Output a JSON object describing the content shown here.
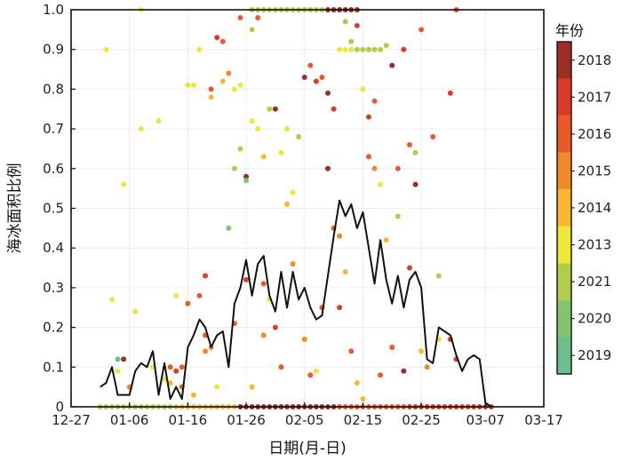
{
  "chart_data": {
    "type": "scatter",
    "xlabel": "日期(月-日)",
    "ylabel": "海冰面积比例",
    "x_ticks": [
      "12-27",
      "01-06",
      "01-16",
      "01-26",
      "02-05",
      "02-15",
      "02-25",
      "03-07",
      "03-17"
    ],
    "xlim": [
      "12-27",
      "03-17"
    ],
    "ylim": [
      0,
      1.0
    ],
    "y_ticks": [
      "0",
      "0.1",
      "0.2",
      "0.3",
      "0.4",
      "0.5",
      "0.6",
      "0.7",
      "0.8",
      "0.9",
      "1.0"
    ],
    "grid": true,
    "colorbar": {
      "title": "年份",
      "position": "right",
      "labels": [
        "2019",
        "2020",
        "2021",
        "2013",
        "2014",
        "2015",
        "2016",
        "2017",
        "2018"
      ],
      "colors": [
        "#6fbf8e",
        "#84c46e",
        "#afcd4a",
        "#ede63a",
        "#f7b733",
        "#ef8a2b",
        "#e9592a",
        "#dc3b2a",
        "#9c2d24"
      ]
    },
    "series": [
      {
        "type": "line",
        "color": "#111111",
        "points": [
          [
            "01-01",
            0.05
          ],
          [
            "01-02",
            0.06
          ],
          [
            "01-03",
            0.1
          ],
          [
            "01-04",
            0.03
          ],
          [
            "01-05",
            0.03
          ],
          [
            "01-06",
            0.03
          ],
          [
            "01-07",
            0.09
          ],
          [
            "01-08",
            0.11
          ],
          [
            "01-09",
            0.1
          ],
          [
            "01-10",
            0.14
          ],
          [
            "01-11",
            0.03
          ],
          [
            "01-12",
            0.11
          ],
          [
            "01-13",
            0.02
          ],
          [
            "01-14",
            0.05
          ],
          [
            "01-15",
            0.02
          ],
          [
            "01-16",
            0.15
          ],
          [
            "01-17",
            0.18
          ],
          [
            "01-18",
            0.22
          ],
          [
            "01-19",
            0.2
          ],
          [
            "01-20",
            0.15
          ],
          [
            "01-21",
            0.18
          ],
          [
            "01-22",
            0.19
          ],
          [
            "01-23",
            0.1
          ],
          [
            "01-24",
            0.26
          ],
          [
            "01-25",
            0.3
          ],
          [
            "01-26",
            0.37
          ],
          [
            "01-27",
            0.28
          ],
          [
            "01-28",
            0.36
          ],
          [
            "01-29",
            0.38
          ],
          [
            "01-30",
            0.28
          ],
          [
            "01-31",
            0.24
          ],
          [
            "02-01",
            0.34
          ],
          [
            "02-02",
            0.25
          ],
          [
            "02-03",
            0.34
          ],
          [
            "02-04",
            0.27
          ],
          [
            "02-05",
            0.3
          ],
          [
            "02-06",
            0.25
          ],
          [
            "02-07",
            0.22
          ],
          [
            "02-08",
            0.23
          ],
          [
            "02-09",
            0.33
          ],
          [
            "02-10",
            0.43
          ],
          [
            "02-11",
            0.52
          ],
          [
            "02-12",
            0.48
          ],
          [
            "02-13",
            0.51
          ],
          [
            "02-14",
            0.45
          ],
          [
            "02-15",
            0.49
          ],
          [
            "02-16",
            0.4
          ],
          [
            "02-17",
            0.31
          ],
          [
            "02-18",
            0.42
          ],
          [
            "02-19",
            0.32
          ],
          [
            "02-20",
            0.26
          ],
          [
            "02-21",
            0.33
          ],
          [
            "02-22",
            0.25
          ],
          [
            "02-23",
            0.32
          ],
          [
            "02-24",
            0.34
          ],
          [
            "02-25",
            0.3
          ],
          [
            "02-26",
            0.12
          ],
          [
            "02-27",
            0.11
          ],
          [
            "02-28",
            0.2
          ],
          [
            "03-01",
            0.18
          ],
          [
            "03-02",
            0.13
          ],
          [
            "03-03",
            0.09
          ],
          [
            "03-04",
            0.12
          ],
          [
            "03-05",
            0.13
          ],
          [
            "03-06",
            0.12
          ],
          [
            "03-07",
            0.01
          ],
          [
            "03-08",
            0.0
          ]
        ]
      },
      {
        "type": "scatter",
        "points": [
          [
            "01-02",
            0.9,
            3
          ],
          [
            "01-03",
            0.27,
            3
          ],
          [
            "01-04",
            0.12,
            0
          ],
          [
            "01-04",
            0.09,
            3
          ],
          [
            "01-05",
            0.12,
            8
          ],
          [
            "01-05",
            0.56,
            3
          ],
          [
            "01-06",
            0.05,
            5
          ],
          [
            "01-07",
            0.24,
            3
          ],
          [
            "01-08",
            0.7,
            3
          ],
          [
            "01-08",
            1.0,
            3
          ],
          [
            "01-10",
            0.1,
            3
          ],
          [
            "01-11",
            0.72,
            3
          ],
          [
            "01-12",
            0.07,
            3
          ],
          [
            "01-13",
            0.06,
            4
          ],
          [
            "01-13",
            0.1,
            6
          ],
          [
            "01-14",
            0.28,
            3
          ],
          [
            "01-14",
            0.09,
            7
          ],
          [
            "01-15",
            0.05,
            6
          ],
          [
            "01-15",
            0.1,
            6
          ],
          [
            "01-16",
            0.81,
            3
          ],
          [
            "01-16",
            0.26,
            6
          ],
          [
            "01-17",
            0.81,
            3
          ],
          [
            "01-17",
            0.03,
            4
          ],
          [
            "01-18",
            0.9,
            3
          ],
          [
            "01-18",
            0.28,
            6
          ],
          [
            "01-19",
            0.33,
            7
          ],
          [
            "01-19",
            0.18,
            6
          ],
          [
            "01-19",
            0.14,
            5
          ],
          [
            "01-20",
            0.8,
            6
          ],
          [
            "01-20",
            0.78,
            4
          ],
          [
            "01-20",
            0.15,
            5
          ],
          [
            "01-21",
            0.93,
            7
          ],
          [
            "01-21",
            0.05,
            3
          ],
          [
            "01-22",
            0.92,
            6
          ],
          [
            "01-22",
            0.82,
            4
          ],
          [
            "01-23",
            0.45,
            1
          ],
          [
            "01-23",
            0.84,
            5
          ],
          [
            "01-24",
            0.6,
            2
          ],
          [
            "01-24",
            0.8,
            3
          ],
          [
            "01-24",
            0.21,
            6
          ],
          [
            "01-25",
            0.98,
            6
          ],
          [
            "01-25",
            0.65,
            2
          ],
          [
            "01-25",
            0.81,
            3
          ],
          [
            "01-26",
            0.58,
            8
          ],
          [
            "01-26",
            0.57,
            1
          ],
          [
            "01-26",
            0.32,
            7
          ],
          [
            "01-27",
            0.95,
            2
          ],
          [
            "01-27",
            0.72,
            3
          ],
          [
            "01-27",
            0.05,
            4
          ],
          [
            "01-28",
            0.98,
            6
          ],
          [
            "01-28",
            0.7,
            3
          ],
          [
            "01-29",
            0.63,
            4
          ],
          [
            "01-29",
            0.18,
            5
          ],
          [
            "01-29",
            0.31,
            6
          ],
          [
            "01-30",
            0.75,
            2
          ],
          [
            "01-30",
            0.27,
            3
          ],
          [
            "01-31",
            0.75,
            8
          ],
          [
            "01-31",
            0.2,
            7
          ],
          [
            "02-01",
            0.64,
            3
          ],
          [
            "02-01",
            0.1,
            6
          ],
          [
            "02-02",
            0.7,
            3
          ],
          [
            "02-02",
            0.51,
            4
          ],
          [
            "02-03",
            0.54,
            3
          ],
          [
            "02-03",
            0.36,
            5
          ],
          [
            "02-04",
            0.68,
            2
          ],
          [
            "02-05",
            0.83,
            8
          ],
          [
            "02-05",
            0.17,
            5
          ],
          [
            "02-06",
            0.86,
            6
          ],
          [
            "02-06",
            0.08,
            6
          ],
          [
            "02-07",
            0.82,
            7
          ],
          [
            "02-07",
            0.09,
            3
          ],
          [
            "02-08",
            0.83,
            6
          ],
          [
            "02-08",
            0.25,
            6
          ],
          [
            "02-09",
            0.79,
            8
          ],
          [
            "02-09",
            0.6,
            8
          ],
          [
            "02-10",
            0.75,
            7
          ],
          [
            "02-10",
            0.45,
            6
          ],
          [
            "02-11",
            0.25,
            7
          ],
          [
            "02-11",
            0.43,
            5
          ],
          [
            "02-12",
            0.97,
            2
          ],
          [
            "02-12",
            0.34,
            4
          ],
          [
            "02-13",
            0.92,
            2
          ],
          [
            "02-13",
            0.14,
            6
          ],
          [
            "02-14",
            0.96,
            7
          ],
          [
            "02-14",
            0.06,
            4
          ],
          [
            "02-15",
            0.8,
            3
          ],
          [
            "02-15",
            0.02,
            4
          ],
          [
            "02-16",
            0.73,
            7
          ],
          [
            "02-16",
            0.63,
            6
          ],
          [
            "02-17",
            0.77,
            6
          ],
          [
            "02-17",
            0.6,
            5
          ],
          [
            "02-18",
            0.56,
            3
          ],
          [
            "02-18",
            0.08,
            6
          ],
          [
            "02-19",
            0.91,
            2
          ],
          [
            "02-19",
            0.42,
            4
          ],
          [
            "02-20",
            0.86,
            8
          ],
          [
            "02-20",
            0.15,
            6
          ],
          [
            "02-21",
            0.6,
            6
          ],
          [
            "02-21",
            0.48,
            2
          ],
          [
            "02-22",
            0.9,
            7
          ],
          [
            "02-22",
            0.09,
            8
          ],
          [
            "02-23",
            0.66,
            6
          ],
          [
            "02-23",
            0.35,
            7
          ],
          [
            "02-24",
            0.64,
            2
          ],
          [
            "02-24",
            0.56,
            8
          ],
          [
            "02-25",
            0.95,
            6
          ],
          [
            "02-25",
            0.14,
            4
          ],
          [
            "02-26",
            0.1,
            5
          ],
          [
            "02-27",
            0.68,
            6
          ],
          [
            "02-28",
            0.33,
            2
          ],
          [
            "02-28",
            0.17,
            3
          ],
          [
            "03-01",
            0.79,
            7
          ],
          [
            "03-01",
            0.17,
            7
          ],
          [
            "03-02",
            0.12,
            7
          ],
          [
            "03-02",
            1.0,
            6
          ]
        ],
        "lines_at": [
          {
            "y": 1.0,
            "from": "01-27",
            "to": "02-08",
            "color": 2
          },
          {
            "y": 1.0,
            "from": "02-09",
            "to": "02-14",
            "color": 8
          },
          {
            "y": 0.9,
            "from": "02-11",
            "to": "02-18",
            "color": 3
          },
          {
            "y": 0.9,
            "from": "02-14",
            "to": "02-18",
            "color": 2
          },
          {
            "y": 0.0,
            "from": "01-01",
            "to": "01-13",
            "color": 2
          },
          {
            "y": 0.0,
            "from": "01-14",
            "to": "01-24",
            "color": 4
          },
          {
            "y": 0.0,
            "from": "01-25",
            "to": "02-10",
            "color": 8
          },
          {
            "y": 0.0,
            "from": "02-11",
            "to": "02-22",
            "color": 6
          },
          {
            "y": 0.0,
            "from": "02-23",
            "to": "03-08",
            "color": 7
          }
        ]
      }
    ]
  }
}
